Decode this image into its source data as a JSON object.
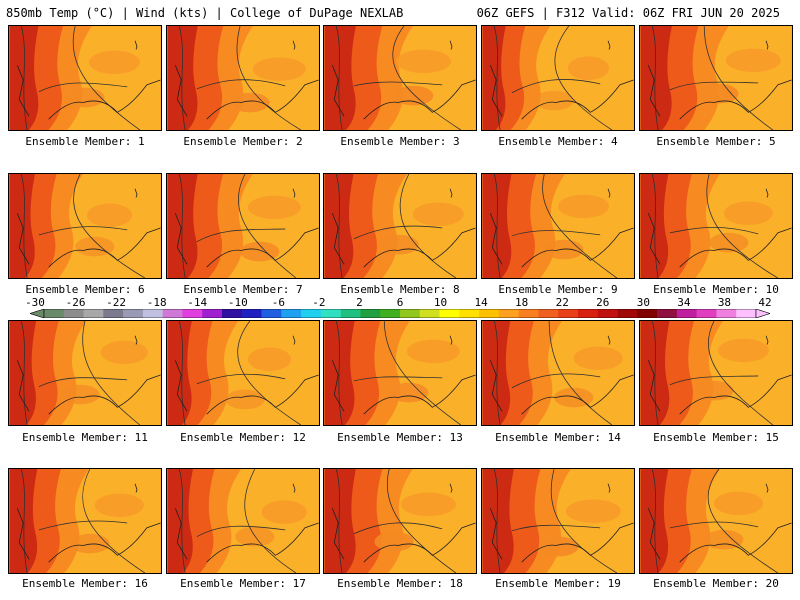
{
  "header": {
    "left": "850mb Temp (°C) | Wind (kts) | College of DuPage NEXLAB",
    "right": "06Z GEFS | F312 Valid: 06Z FRI JUN 20 2025"
  },
  "members": [
    {
      "label": "Ensemble Member: 1",
      "hot": 0.8
    },
    {
      "label": "Ensemble Member: 2",
      "hot": 0.9
    },
    {
      "label": "Ensemble Member: 3",
      "hot": 1.0
    },
    {
      "label": "Ensemble Member: 4",
      "hot": 0.3
    },
    {
      "label": "Ensemble Member: 5",
      "hot": 1.0
    },
    {
      "label": "Ensemble Member: 6",
      "hot": 0.5
    },
    {
      "label": "Ensemble Member: 7",
      "hot": 0.9
    },
    {
      "label": "Ensemble Member: 8",
      "hot": 0.8
    },
    {
      "label": "Ensemble Member: 9",
      "hot": 0.8
    },
    {
      "label": "Ensemble Member: 10",
      "hot": 0.7
    },
    {
      "label": "Ensemble Member: 11",
      "hot": 0.6
    },
    {
      "label": "Ensemble Member: 12",
      "hot": 0.4
    },
    {
      "label": "Ensemble Member: 13",
      "hot": 0.9
    },
    {
      "label": "Ensemble Member: 14",
      "hot": 0.7
    },
    {
      "label": "Ensemble Member: 15",
      "hot": 0.8
    },
    {
      "label": "Ensemble Member: 16",
      "hot": 0.7
    },
    {
      "label": "Ensemble Member: 17",
      "hot": 0.5
    },
    {
      "label": "Ensemble Member: 18",
      "hot": 1.0
    },
    {
      "label": "Ensemble Member: 19",
      "hot": 1.0
    },
    {
      "label": "Ensemble Member: 20",
      "hot": 0.7
    }
  ],
  "colorbar": {
    "ticks": [
      "-30",
      "-26",
      "-22",
      "-18",
      "-14",
      "-10",
      "-6",
      "-2",
      "2",
      "6",
      "10",
      "14",
      "18",
      "22",
      "26",
      "30",
      "34",
      "38",
      "42"
    ],
    "colors": [
      "#6a8a6a",
      "#8c8c8c",
      "#a8a8a8",
      "#7a7a8c",
      "#9a9ab4",
      "#c0c0e0",
      "#d078d8",
      "#e040e0",
      "#a020d0",
      "#3010a0",
      "#2020c0",
      "#2060e0",
      "#20a0f0",
      "#20d0f0",
      "#30e0c0",
      "#20c080",
      "#20a040",
      "#40b020",
      "#90c820",
      "#d0e020",
      "#ffff00",
      "#ffe000",
      "#ffc000",
      "#ffa020",
      "#f88020",
      "#f06020",
      "#e84018",
      "#d82010",
      "#c01010",
      "#a00808",
      "#800000",
      "#901040",
      "#c020a0",
      "#e040c0",
      "#f080e0",
      "#ffc0ff"
    ]
  }
}
